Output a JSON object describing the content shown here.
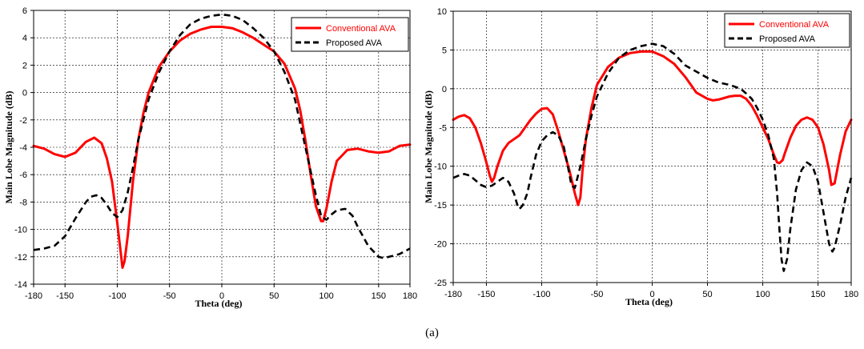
{
  "caption": "(a)",
  "chart_data": [
    {
      "type": "line",
      "xlabel": "Theta (deg)",
      "ylabel": "Main Lobe Magnitude (dB)",
      "xlim": [
        -180,
        180
      ],
      "ylim": [
        -14,
        6
      ],
      "xticks": [
        -180,
        -150,
        -100,
        -50,
        0,
        50,
        100,
        150,
        180
      ],
      "yticks": [
        -14,
        -12,
        -10,
        -8,
        -6,
        -4,
        -2,
        0,
        2,
        4,
        6
      ],
      "grid": true,
      "legend_position": "top-right",
      "series": [
        {
          "name": "Conventional AVA",
          "color": "#ff0000",
          "style": "solid",
          "x": [
            -180,
            -170,
            -160,
            -150,
            -140,
            -130,
            -122,
            -115,
            -110,
            -105,
            -100,
            -97,
            -95,
            -93,
            -90,
            -85,
            -80,
            -75,
            -70,
            -60,
            -50,
            -40,
            -30,
            -20,
            -10,
            0,
            10,
            20,
            30,
            40,
            50,
            60,
            70,
            75,
            80,
            85,
            90,
            95,
            97,
            100,
            105,
            110,
            120,
            130,
            140,
            150,
            160,
            170,
            180
          ],
          "y": [
            -3.9,
            -4.1,
            -4.5,
            -4.7,
            -4.4,
            -3.6,
            -3.3,
            -3.7,
            -4.8,
            -6.5,
            -9.5,
            -11.5,
            -12.8,
            -12.3,
            -10.5,
            -6.5,
            -3.5,
            -1.5,
            0.0,
            1.9,
            3.0,
            3.8,
            4.3,
            4.6,
            4.8,
            4.8,
            4.7,
            4.4,
            4.0,
            3.5,
            3.0,
            2.1,
            0.3,
            -1.3,
            -3.5,
            -6.0,
            -8.3,
            -9.4,
            -9.4,
            -8.5,
            -6.5,
            -5.0,
            -4.2,
            -4.1,
            -4.3,
            -4.4,
            -4.3,
            -3.9,
            -3.8
          ]
        },
        {
          "name": "Proposed AVA",
          "color": "#000000",
          "style": "dashed",
          "x": [
            -180,
            -170,
            -160,
            -150,
            -140,
            -130,
            -125,
            -120,
            -115,
            -110,
            -105,
            -100,
            -95,
            -90,
            -85,
            -80,
            -70,
            -60,
            -50,
            -40,
            -30,
            -20,
            -10,
            0,
            10,
            20,
            30,
            40,
            50,
            60,
            70,
            80,
            90,
            95,
            100,
            105,
            110,
            118,
            125,
            130,
            140,
            150,
            155,
            160,
            170,
            180
          ],
          "y": [
            -11.5,
            -11.4,
            -11.2,
            -10.5,
            -9.2,
            -8.0,
            -7.6,
            -7.5,
            -7.7,
            -8.2,
            -8.8,
            -9.1,
            -8.6,
            -7.3,
            -5.5,
            -3.5,
            -0.5,
            1.5,
            3.0,
            4.2,
            5.0,
            5.4,
            5.6,
            5.7,
            5.6,
            5.3,
            4.7,
            4.0,
            3.0,
            1.5,
            -0.5,
            -4.0,
            -7.5,
            -9.0,
            -9.3,
            -8.9,
            -8.6,
            -8.5,
            -9.0,
            -9.8,
            -11.2,
            -12.0,
            -12.1,
            -12.0,
            -11.8,
            -11.4
          ]
        }
      ]
    },
    {
      "type": "line",
      "xlabel": "Theta (deg)",
      "ylabel": "Main Lobe Magnitude (dB)",
      "xlim": [
        -180,
        180
      ],
      "ylim": [
        -25,
        10
      ],
      "xticks": [
        -180,
        -150,
        -100,
        -50,
        0,
        50,
        100,
        150,
        180
      ],
      "yticks": [
        -25,
        -20,
        -15,
        -10,
        -5,
        0,
        5,
        10
      ],
      "grid": true,
      "legend_position": "top-right",
      "series": [
        {
          "name": "Conventional AVA",
          "color": "#ff0000",
          "style": "solid",
          "x": [
            -180,
            -175,
            -170,
            -165,
            -160,
            -155,
            -150,
            -147,
            -145,
            -143,
            -140,
            -135,
            -130,
            -125,
            -120,
            -115,
            -110,
            -105,
            -100,
            -95,
            -90,
            -85,
            -80,
            -75,
            -70,
            -67,
            -65,
            -63,
            -60,
            -55,
            -50,
            -40,
            -30,
            -20,
            -10,
            0,
            10,
            20,
            30,
            40,
            50,
            55,
            60,
            65,
            70,
            75,
            80,
            85,
            90,
            95,
            100,
            105,
            110,
            113,
            115,
            118,
            120,
            125,
            130,
            135,
            140,
            145,
            150,
            155,
            160,
            162,
            165,
            170,
            175,
            180
          ],
          "y": [
            -4.0,
            -3.6,
            -3.4,
            -3.8,
            -5.0,
            -7.0,
            -9.5,
            -11.2,
            -12.0,
            -11.5,
            -10.0,
            -8.0,
            -7.0,
            -6.5,
            -6.0,
            -5.0,
            -4.0,
            -3.2,
            -2.6,
            -2.5,
            -3.3,
            -5.5,
            -8.0,
            -10.5,
            -13.5,
            -15.0,
            -14.0,
            -10.5,
            -6.5,
            -2.5,
            0.5,
            2.8,
            4.0,
            4.6,
            4.8,
            4.8,
            4.2,
            3.2,
            1.5,
            -0.5,
            -1.3,
            -1.5,
            -1.4,
            -1.2,
            -1.0,
            -0.9,
            -0.9,
            -1.3,
            -2.2,
            -3.5,
            -5.0,
            -6.5,
            -8.5,
            -9.5,
            -9.6,
            -9.2,
            -8.3,
            -6.3,
            -4.8,
            -4.0,
            -3.7,
            -4.0,
            -5.0,
            -7.2,
            -10.5,
            -12.4,
            -12.2,
            -8.5,
            -5.5,
            -4.0
          ]
        },
        {
          "name": "Proposed AVA",
          "color": "#000000",
          "style": "dashed",
          "x": [
            -180,
            -175,
            -170,
            -165,
            -160,
            -155,
            -150,
            -145,
            -140,
            -135,
            -130,
            -125,
            -122,
            -120,
            -117,
            -113,
            -110,
            -105,
            -100,
            -95,
            -90,
            -85,
            -80,
            -77,
            -75,
            -73,
            -70,
            -65,
            -60,
            -55,
            -50,
            -40,
            -30,
            -20,
            -10,
            0,
            10,
            20,
            30,
            40,
            50,
            60,
            70,
            80,
            85,
            90,
            95,
            100,
            105,
            110,
            113,
            115,
            117,
            119,
            122,
            125,
            130,
            135,
            140,
            145,
            150,
            155,
            160,
            163,
            165,
            170,
            175,
            180
          ],
          "y": [
            -11.5,
            -11.2,
            -11.0,
            -11.2,
            -11.8,
            -12.4,
            -12.7,
            -12.5,
            -12.0,
            -11.5,
            -12.0,
            -13.5,
            -15.0,
            -15.5,
            -15.0,
            -13.5,
            -11.5,
            -8.5,
            -6.8,
            -6.0,
            -5.6,
            -6.0,
            -7.5,
            -9.5,
            -11.0,
            -12.5,
            -12.8,
            -10.0,
            -6.5,
            -3.5,
            -1.0,
            2.0,
            4.0,
            5.0,
            5.5,
            5.8,
            5.5,
            4.5,
            3.0,
            2.2,
            1.4,
            0.8,
            0.5,
            0.0,
            -0.6,
            -1.3,
            -2.5,
            -4.0,
            -6.0,
            -9.0,
            -13.5,
            -18.0,
            -22.0,
            -23.5,
            -22.0,
            -18.0,
            -13.0,
            -10.5,
            -9.5,
            -10.0,
            -12.0,
            -16.0,
            -20.0,
            -21.0,
            -20.5,
            -17.5,
            -14.0,
            -11.5
          ]
        }
      ]
    }
  ]
}
